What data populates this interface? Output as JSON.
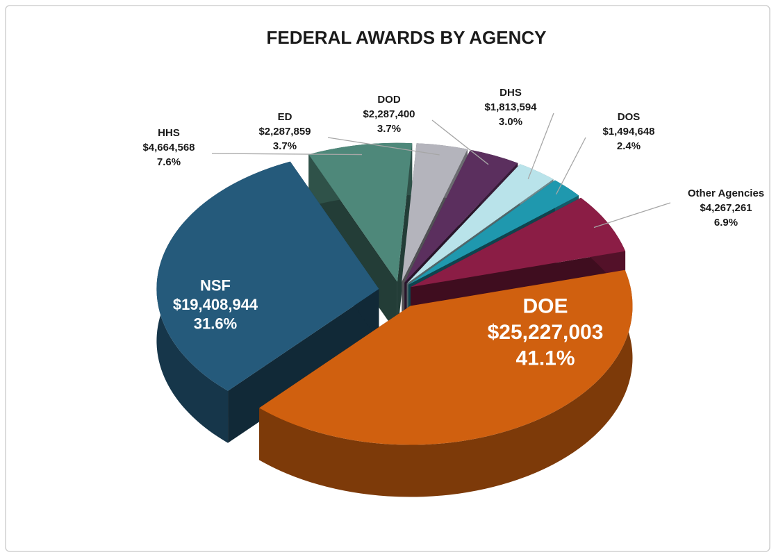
{
  "chart_data": {
    "type": "pie",
    "title": "FEDERAL AWARDS BY AGENCY",
    "categories": [
      "DOE",
      "NSF",
      "HHS",
      "ED",
      "DOD",
      "DHS",
      "DOS",
      "Other Agencies"
    ],
    "values": [
      25227003,
      19408944,
      4664568,
      2287859,
      2287400,
      1813594,
      1494648,
      4267261
    ],
    "value_labels": [
      "$25,227,003",
      "$19,408,944",
      "$4,664,568",
      "$2,287,859",
      "$2,287,400",
      "$1,813,594",
      "$1,494,648",
      "$4,267,261"
    ],
    "percent_labels": [
      "41.1%",
      "31.6%",
      "7.6%",
      "3.7%",
      "3.7%",
      "3.0%",
      "2.4%",
      "6.9%"
    ],
    "colors": [
      "#d0600f",
      "#255a7b",
      "#4e887a",
      "#b4b4bc",
      "#5b2f5e",
      "#b9e3ea",
      "#1f98ae",
      "#8b1d45"
    ]
  }
}
